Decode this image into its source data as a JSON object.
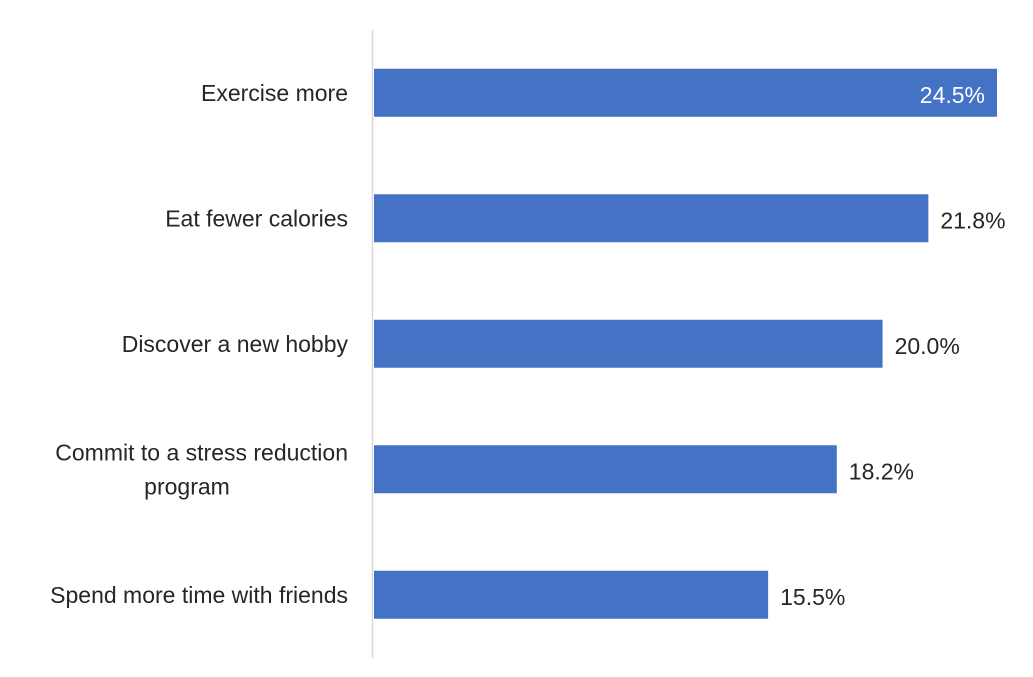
{
  "chart_data": {
    "type": "bar",
    "orientation": "horizontal",
    "title": "",
    "xlabel": "",
    "ylabel": "",
    "categories": [
      "Exercise more",
      "Eat fewer calories",
      "Discover a new hobby",
      "Commit to a stress reduction program",
      "Spend more time with friends"
    ],
    "category_lines": [
      [
        "Exercise more"
      ],
      [
        "Eat fewer calories"
      ],
      [
        "Discover a new hobby"
      ],
      [
        "Commit to a stress reduction",
        "program"
      ],
      [
        "Spend more time with friends"
      ]
    ],
    "values": [
      24.5,
      21.8,
      20.0,
      18.2,
      15.5
    ],
    "value_labels": [
      "24.5%",
      "21.8%",
      "20.0%",
      "18.2%",
      "15.5%"
    ],
    "xlim": [
      0,
      24.5
    ],
    "grid": false,
    "legend": "none",
    "colors": {
      "bar": "#4472C4",
      "axis": "#d9d9d9",
      "text": "#262626",
      "inside_label": "#ffffff"
    }
  }
}
